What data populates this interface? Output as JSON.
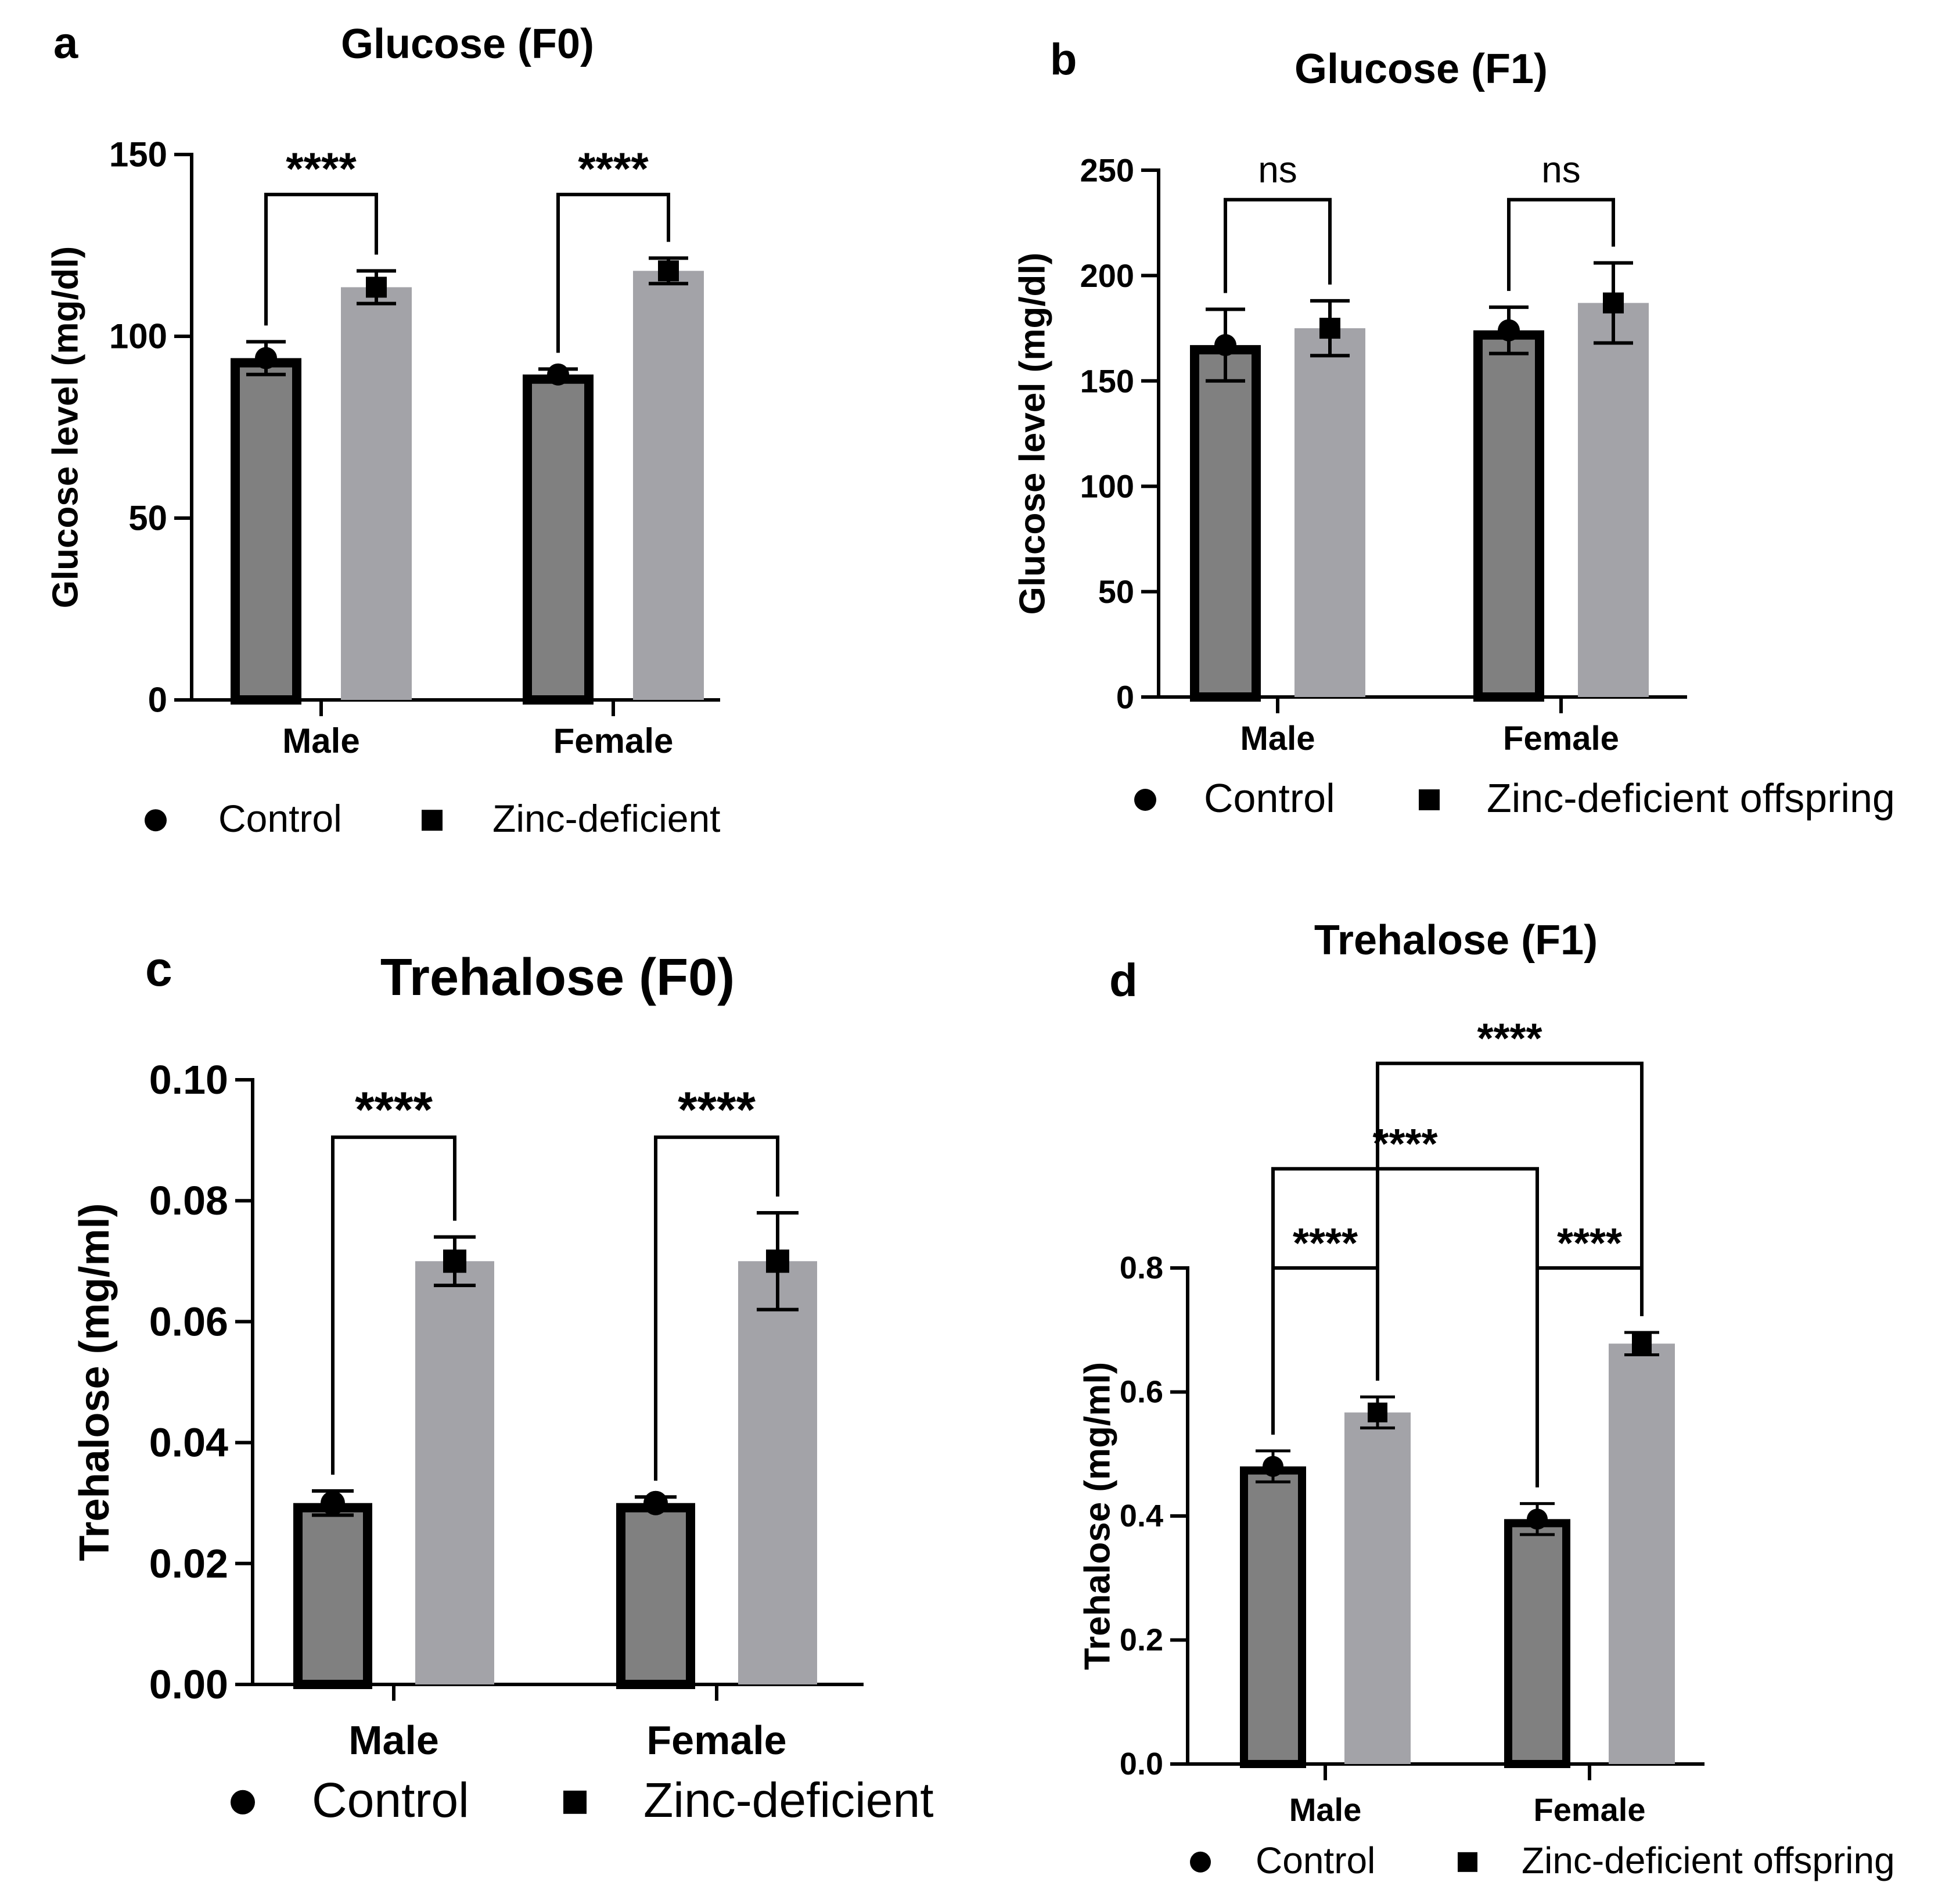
{
  "colors": {
    "control_bar": "#808080",
    "zinc_bar": "#a3a3a8",
    "ink": "#000000",
    "background": "#ffffff"
  },
  "chart_data": [
    {
      "panel": "a",
      "type": "bar",
      "title": "Glucose (F0)",
      "ylabel": "Glucose level (mg/dl)",
      "xlabel": "",
      "ylim": [
        0,
        150
      ],
      "yticks": [
        "0",
        "50",
        "100",
        "150"
      ],
      "categories": [
        "Male",
        "Female"
      ],
      "series": [
        {
          "name": "Control",
          "marker": "circle",
          "values": [
            94,
            89.5
          ],
          "err": [
            4.5,
            1.5
          ]
        },
        {
          "name": "Zinc-deficient",
          "marker": "square",
          "values": [
            113.5,
            118
          ],
          "err": [
            4.5,
            3.5
          ]
        }
      ],
      "significance": [
        {
          "label": "****",
          "from": [
            0,
            0
          ],
          "to": [
            0,
            1
          ],
          "y": 139
        },
        {
          "label": "****",
          "from": [
            1,
            0
          ],
          "to": [
            1,
            1
          ],
          "y": 139
        }
      ],
      "legend_position": "bottom"
    },
    {
      "panel": "b",
      "type": "bar",
      "title": "Glucose (F1)",
      "ylabel": "Glucose level (mg/dl)",
      "xlabel": "",
      "ylim": [
        0,
        250
      ],
      "yticks": [
        "0",
        "50",
        "100",
        "150",
        "200",
        "250"
      ],
      "categories": [
        "Male",
        "Female"
      ],
      "series": [
        {
          "name": "Control",
          "marker": "circle",
          "values": [
            167,
            174
          ],
          "err": [
            17,
            11
          ]
        },
        {
          "name": "Zinc-deficient offspring",
          "marker": "square",
          "values": [
            175,
            187
          ],
          "err": [
            13,
            19
          ]
        }
      ],
      "significance": [
        {
          "label": "ns",
          "from": [
            0,
            0
          ],
          "to": [
            0,
            1
          ],
          "y": 236
        },
        {
          "label": "ns",
          "from": [
            1,
            0
          ],
          "to": [
            1,
            1
          ],
          "y": 236
        }
      ],
      "legend_position": "bottom"
    },
    {
      "panel": "c",
      "type": "bar",
      "title": "Trehalose (F0)",
      "ylabel": "Trehalose (mg/ml)",
      "xlabel": "",
      "ylim": [
        0,
        0.1
      ],
      "yticks": [
        "0.00",
        "0.02",
        "0.04",
        "0.06",
        "0.08",
        "0.10"
      ],
      "categories": [
        "Male",
        "Female"
      ],
      "series": [
        {
          "name": "Control",
          "marker": "circle",
          "values": [
            0.03,
            0.03
          ],
          "err": [
            0.002,
            0.001
          ]
        },
        {
          "name": "Zinc-deficient",
          "marker": "square",
          "values": [
            0.07,
            0.07
          ],
          "err": [
            0.004,
            0.008
          ]
        }
      ],
      "significance": [
        {
          "label": "****",
          "from": [
            0,
            0
          ],
          "to": [
            0,
            1
          ],
          "y": 0.0905
        },
        {
          "label": "****",
          "from": [
            1,
            0
          ],
          "to": [
            1,
            1
          ],
          "y": 0.0905
        }
      ],
      "legend_position": "bottom"
    },
    {
      "panel": "d",
      "type": "bar",
      "title": "Trehalose (F1)",
      "ylabel": "Trehalose (mg/ml)",
      "xlabel": "",
      "ylim": [
        0,
        0.8
      ],
      "yticks": [
        "0.0",
        "0.2",
        "0.4",
        "0.6",
        "0.8"
      ],
      "categories": [
        "Male",
        "Female"
      ],
      "series": [
        {
          "name": "Control",
          "marker": "circle",
          "values": [
            0.48,
            0.395
          ],
          "err": [
            0.025,
            0.025
          ]
        },
        {
          "name": "Zinc-deficient offspring",
          "marker": "square",
          "values": [
            0.567,
            0.678
          ],
          "err": [
            0.025,
            0.018
          ]
        }
      ],
      "significance": [
        {
          "label": "****",
          "from": [
            0,
            0
          ],
          "to": [
            0,
            1
          ],
          "y": 0.8
        },
        {
          "label": "****",
          "from": [
            1,
            0
          ],
          "to": [
            1,
            1
          ],
          "y": 0.8
        },
        {
          "label": "****",
          "from": [
            0,
            0
          ],
          "to": [
            1,
            0
          ],
          "y": 0.96
        },
        {
          "label": "****",
          "from": [
            0,
            1
          ],
          "to": [
            1,
            1
          ],
          "y": 1.13
        }
      ],
      "legend_position": "bottom"
    }
  ]
}
